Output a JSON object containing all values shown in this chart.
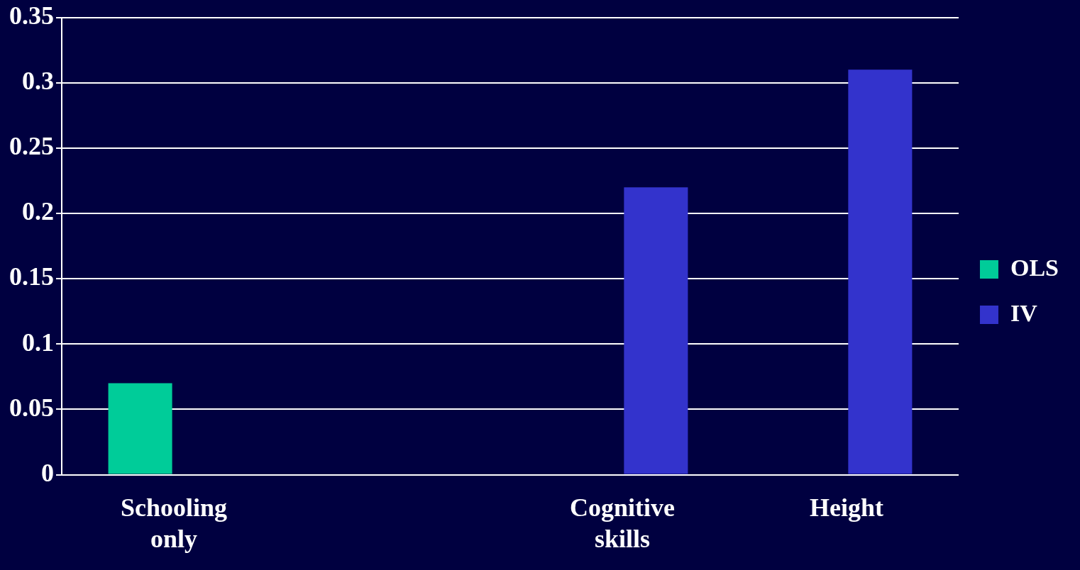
{
  "chart_data": {
    "type": "bar",
    "categories": [
      "Schooling only",
      null,
      "Cognitive skills",
      "Height"
    ],
    "series": [
      {
        "name": "OLS",
        "color": "#00cc99",
        "values": [
          0.07,
          null,
          null,
          null
        ]
      },
      {
        "name": "IV",
        "color": "#3333cc",
        "values": [
          null,
          null,
          0.22,
          0.31
        ]
      }
    ],
    "ylim": [
      0,
      0.35
    ],
    "yticks": [
      0,
      0.05,
      0.1,
      0.15,
      0.2,
      0.25,
      0.3,
      0.35
    ],
    "grid": "y",
    "legend": "right"
  }
}
